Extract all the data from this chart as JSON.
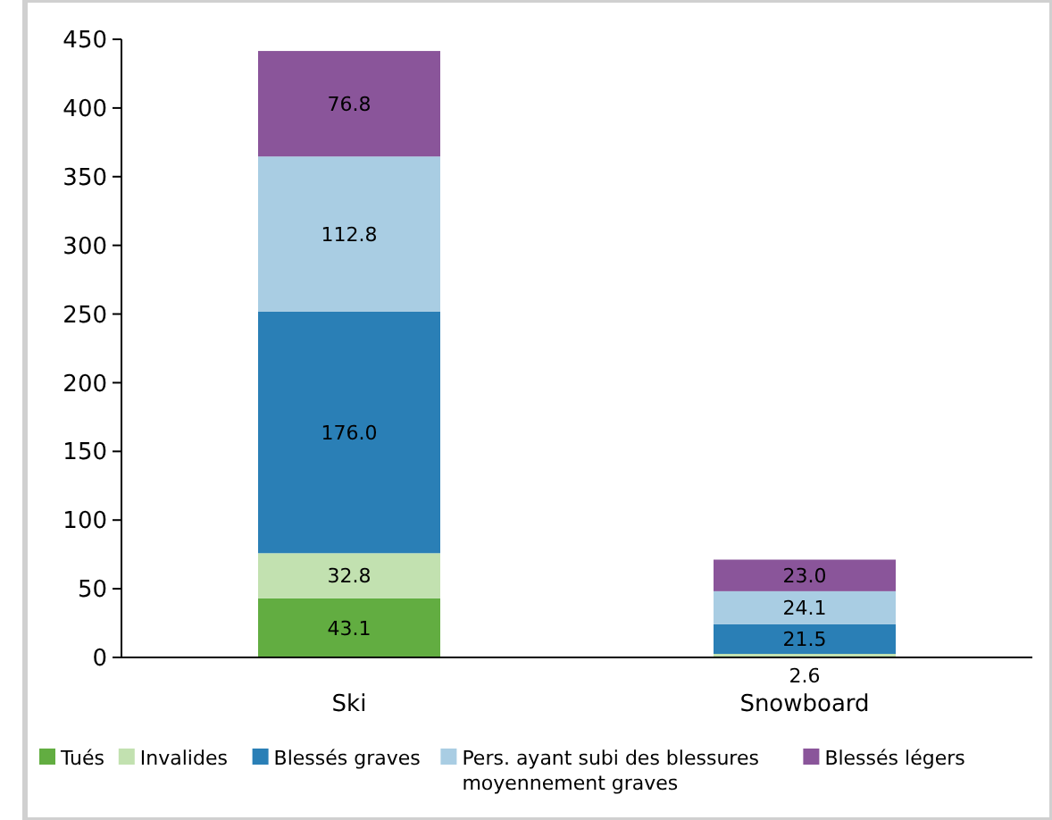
{
  "chart_data": {
    "type": "bar",
    "stacked": true,
    "categories": [
      "Ski",
      "Snowboard"
    ],
    "series": [
      {
        "name": "Tués",
        "color": "#62ad41",
        "values": [
          43.1,
          null
        ],
        "value_labels": [
          "43.1",
          null
        ]
      },
      {
        "name": "Invalides",
        "color": "#c2e1b0",
        "values": [
          32.8,
          2.6
        ],
        "value_labels": [
          "32.8",
          "2.6"
        ]
      },
      {
        "name": "Blessés graves",
        "color": "#2a7fb6",
        "values": [
          176.0,
          21.5
        ],
        "value_labels": [
          "176.0",
          "21.5"
        ]
      },
      {
        "name": "Pers. ayant subi des blessures moyennement graves",
        "color": "#a9cde3",
        "values": [
          112.8,
          24.1
        ],
        "value_labels": [
          "112.8",
          "24.1"
        ]
      },
      {
        "name": "Blessés légers",
        "color": "#8a559a",
        "values": [
          76.8,
          23.0
        ],
        "value_labels": [
          "76.8",
          "23.0"
        ]
      }
    ],
    "ylim": [
      0,
      450
    ],
    "yticks": [
      0,
      50,
      100,
      150,
      200,
      250,
      300,
      350,
      400,
      450
    ],
    "legend": "bottom"
  }
}
